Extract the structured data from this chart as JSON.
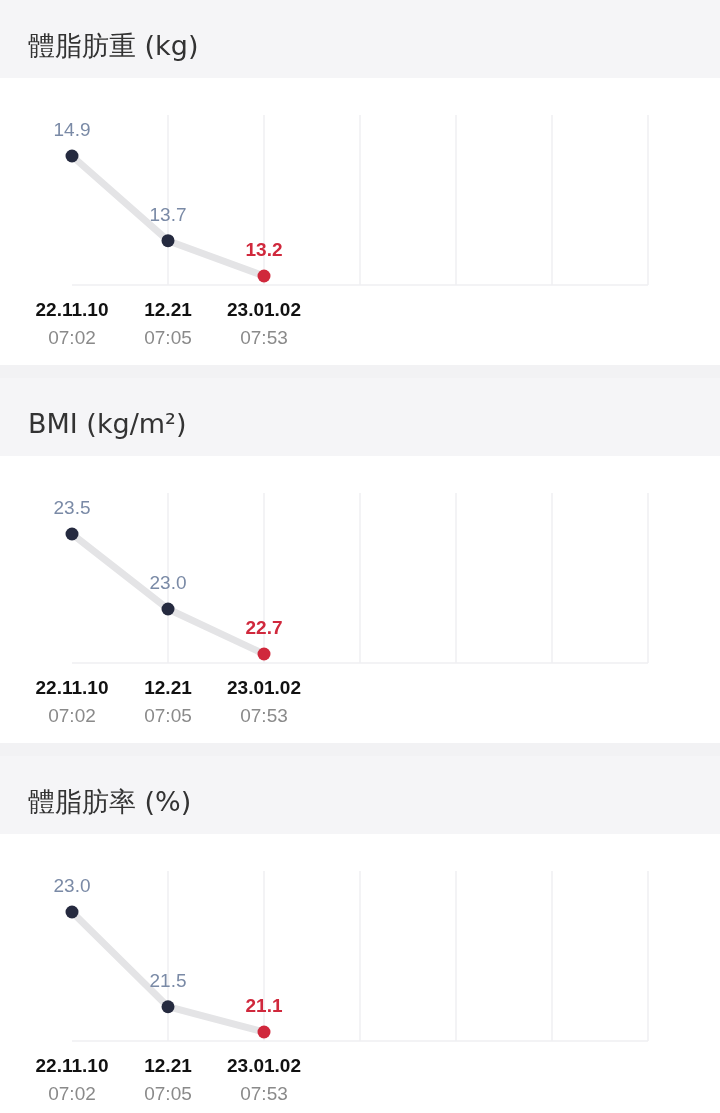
{
  "chart_data": [
    {
      "type": "line",
      "title": "體脂肪重 (kg)",
      "categories": [
        "22.11.10 07:02",
        "12.21 07:05",
        "23.01.02 07:53",
        null,
        null,
        null,
        null
      ],
      "series": [
        {
          "color": "#e4e4e6",
          "colors": [
            "#252a3f",
            "#252a3f",
            "#d0283c",
            null,
            null,
            null,
            null
          ],
          "values": [
            14.9,
            13.7,
            13.2,
            null,
            null,
            null,
            null
          ],
          "value_labels": [
            "14.9",
            "13.7",
            "13.2",
            null,
            null,
            null,
            null
          ]
        }
      ],
      "grid": "x",
      "marker": "circle",
      "relative": false
    },
    {
      "type": "line",
      "title": "BMI (kg/m²)",
      "categories": [
        "22.11.10 07:02",
        "12.21 07:05",
        "23.01.02 07:53",
        null,
        null,
        null,
        null
      ],
      "series": [
        {
          "color": "#e4e4e6",
          "colors": [
            "#252a3f",
            "#252a3f",
            "#d0283c",
            null,
            null,
            null,
            null
          ],
          "values": [
            23.5,
            23.0,
            22.7,
            null,
            null,
            null,
            null
          ],
          "value_labels": [
            "23.5",
            "23.0",
            "22.7",
            null,
            null,
            null,
            null
          ]
        }
      ],
      "grid": "x",
      "marker": "circle",
      "relative": false
    },
    {
      "type": "line",
      "title": "體脂肪率 (%)",
      "categories": [
        "22.11.10 07:02",
        "12.21 07:05",
        "23.01.02 07:53",
        null,
        null,
        null,
        null
      ],
      "series": [
        {
          "color": "#e4e4e6",
          "colors": [
            "#252a3f",
            "#252a3f",
            "#d0283c",
            null,
            null,
            null,
            null
          ],
          "values": [
            23.0,
            21.5,
            21.1,
            null,
            null,
            null,
            null
          ],
          "value_labels": [
            "23.0",
            "21.5",
            "21.1",
            null,
            null,
            null,
            null
          ]
        }
      ],
      "grid": "x",
      "marker": "circle",
      "relative": false
    }
  ]
}
